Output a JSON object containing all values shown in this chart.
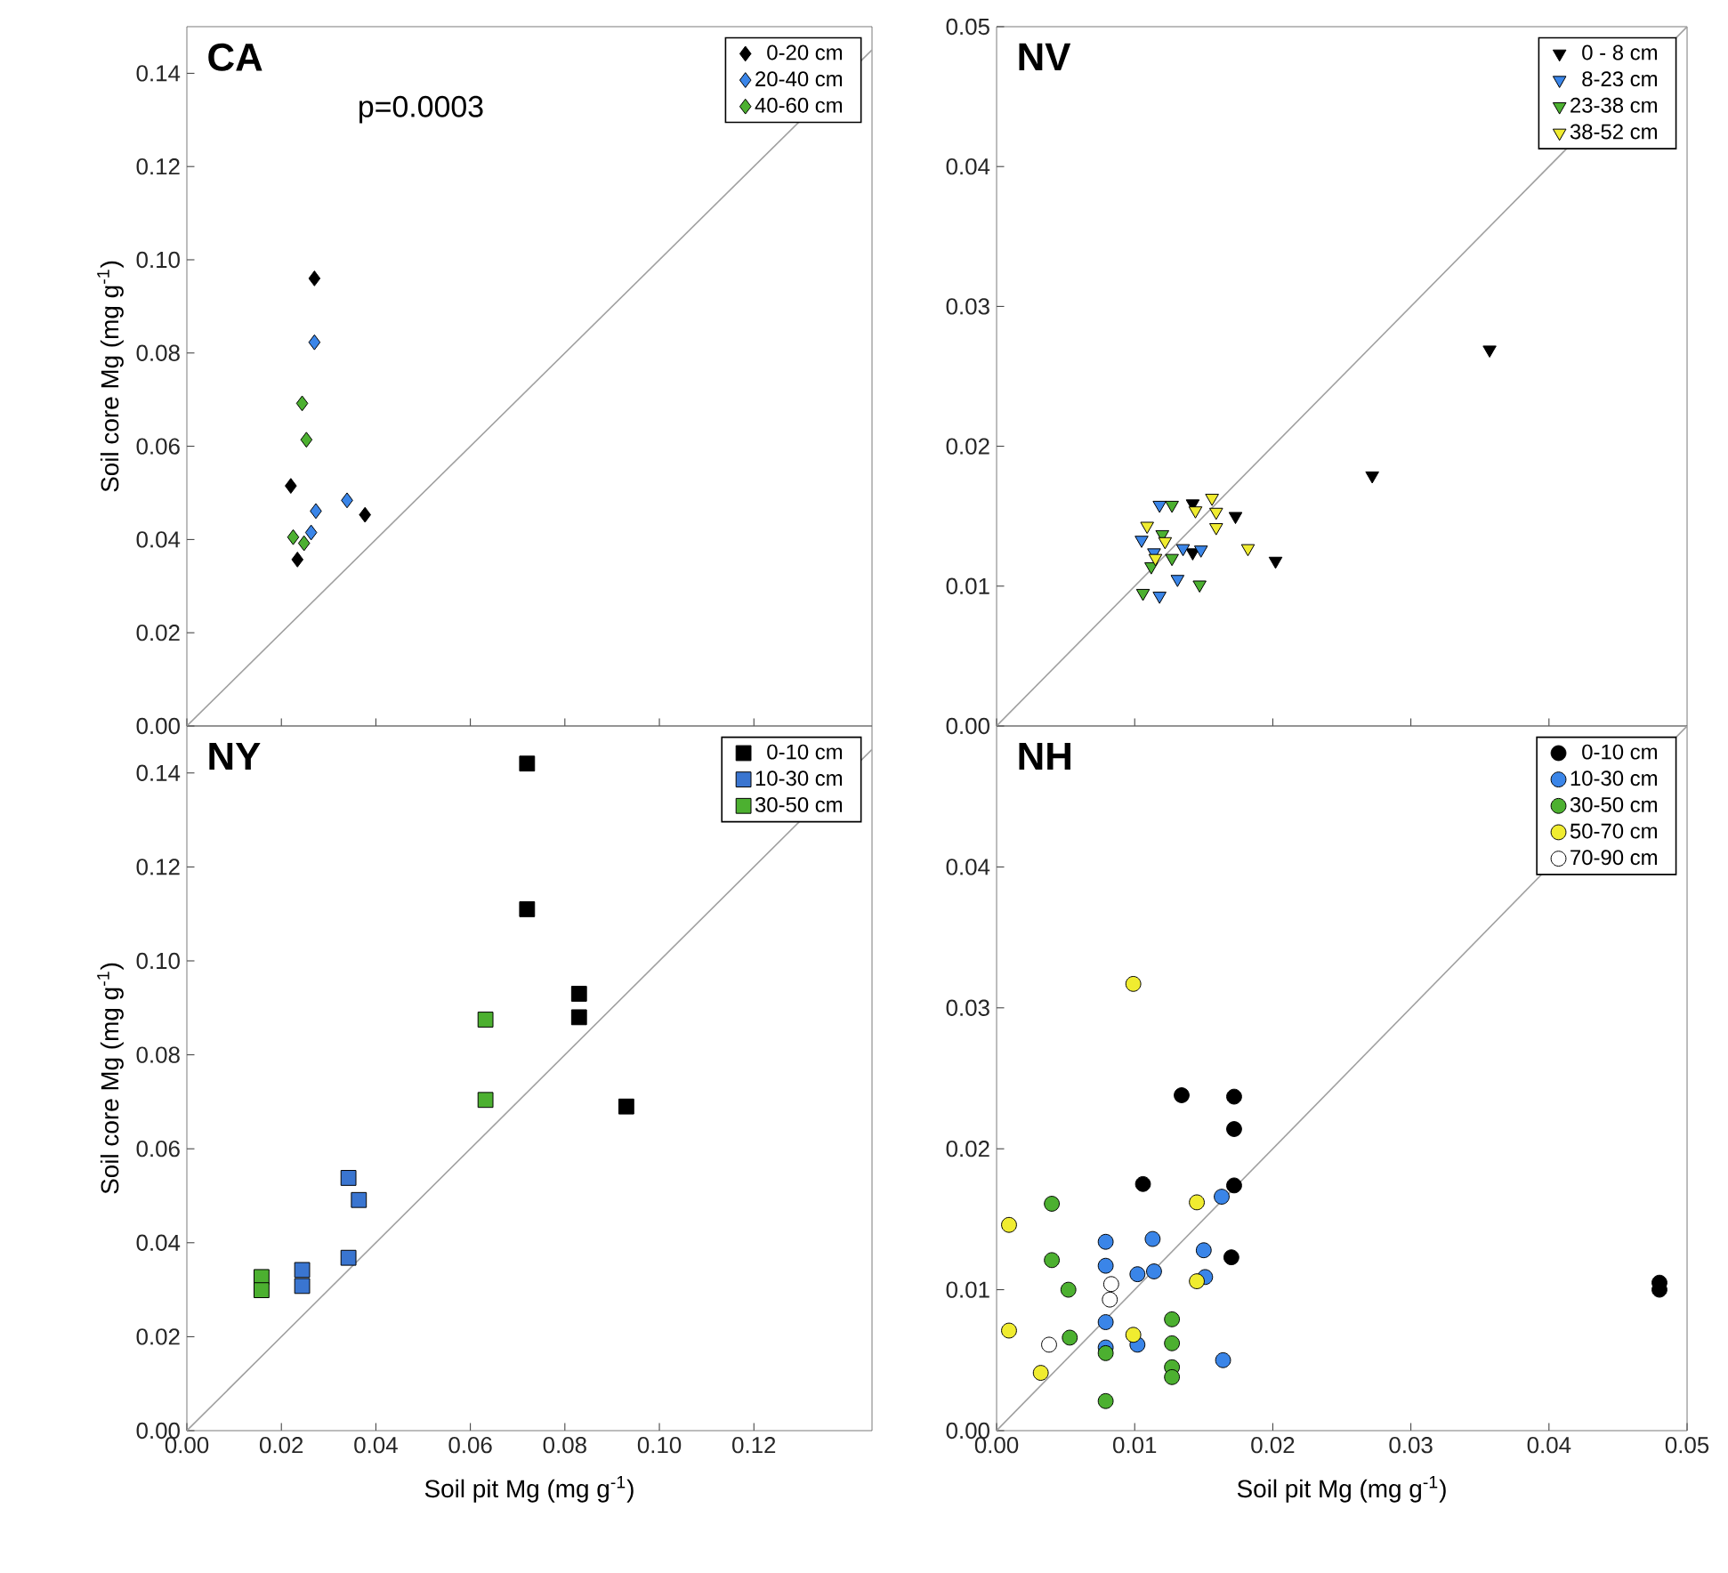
{
  "chart_data": [
    {
      "type": "scatter",
      "title": "CA",
      "ylabel": "Soil core Mg (mg g$^{-1}$)",
      "annotations": [
        "p=0.0003"
      ],
      "marker": "diamond",
      "legend": "top right",
      "grid": false,
      "tick_labels": "y",
      "xlim": [
        0,
        0.145
      ],
      "ylim": [
        0,
        0.15
      ],
      "xticks": [
        {
          "value": 0,
          "label": null
        },
        {
          "value": 0.02,
          "label": null
        },
        {
          "value": 0.04,
          "label": null
        },
        {
          "value": 0.06,
          "label": null
        },
        {
          "value": 0.08,
          "label": null
        },
        {
          "value": 0.1,
          "label": null
        },
        {
          "value": 0.12,
          "label": null
        }
      ],
      "yticks": [
        {
          "value": 0,
          "label": "0.00"
        },
        {
          "value": 0.02,
          "label": "0.02"
        },
        {
          "value": 0.04,
          "label": "0.04"
        },
        {
          "value": 0.06,
          "label": "0.06"
        },
        {
          "value": 0.08,
          "label": "0.08"
        },
        {
          "value": 0.1,
          "label": "0.10"
        },
        {
          "value": 0.12,
          "label": "0.12"
        },
        {
          "value": 0.14,
          "label": "0.14"
        }
      ],
      "series": [
        {
          "type": "line",
          "marker": "none",
          "color": "#a0a0a0",
          "x": [
            0,
            0.145
          ],
          "values": [
            0,
            0.145
          ]
        },
        {
          "name": "0-20 cm",
          "color": "#000000",
          "x": [
            0.027,
            0.022,
            0.0234,
            0.0377
          ],
          "values": [
            0.096,
            0.0515,
            0.0357,
            0.0453
          ]
        },
        {
          "name": "20-40 cm",
          "color": "#3a85e8",
          "x": [
            0.027,
            0.0339,
            0.0273,
            0.0263
          ],
          "values": [
            0.0823,
            0.0484,
            0.0461,
            0.0415
          ]
        },
        {
          "name": "40-60 cm",
          "color": "#4cb030",
          "x": [
            0.0244,
            0.0253,
            0.0225,
            0.0248
          ],
          "values": [
            0.0692,
            0.0614,
            0.0405,
            0.0392
          ]
        }
      ]
    },
    {
      "type": "scatter",
      "title": "NV",
      "marker": "triangle",
      "legend": "top right",
      "grid": false,
      "tick_labels": "y",
      "xlim": [
        0,
        0.05
      ],
      "ylim": [
        0,
        0.05
      ],
      "xticks": [
        {
          "value": 0,
          "label": null
        },
        {
          "value": 0.01,
          "label": null
        },
        {
          "value": 0.02,
          "label": null
        },
        {
          "value": 0.03,
          "label": null
        },
        {
          "value": 0.04,
          "label": null
        }
      ],
      "yticks": [
        {
          "value": 0,
          "label": "0.00"
        },
        {
          "value": 0.01,
          "label": "0.01"
        },
        {
          "value": 0.02,
          "label": "0.02"
        },
        {
          "value": 0.03,
          "label": "0.03"
        },
        {
          "value": 0.04,
          "label": "0.04"
        },
        {
          "value": 0.05,
          "label": "0.05"
        }
      ],
      "series": [
        {
          "type": "line",
          "marker": "none",
          "color": "#a0a0a0",
          "x": [
            0,
            0.05
          ],
          "values": [
            0,
            0.05
          ]
        },
        {
          "name": "0 - 8 cm",
          "color": "#000000",
          "x": [
            0.0357,
            0.0272,
            0.0202,
            0.0173,
            0.0142,
            0.0142
          ],
          "values": [
            0.0269,
            0.0179,
            0.0118,
            0.015,
            0.0159,
            0.0124
          ]
        },
        {
          "name": "8-23 cm",
          "color": "#3a85e8",
          "x": [
            0.0118,
            0.0105,
            0.0118,
            0.0131,
            0.0148,
            0.0135,
            0.0114
          ],
          "values": [
            0.0158,
            0.0133,
            0.0093,
            0.0105,
            0.0126,
            0.0127,
            0.0124
          ]
        },
        {
          "name": "23-38 cm",
          "color": "#4cb030",
          "x": [
            0.0127,
            0.0106,
            0.0147,
            0.0112,
            0.0127,
            0.012
          ],
          "values": [
            0.0158,
            0.0095,
            0.0101,
            0.0114,
            0.012,
            0.0137
          ]
        },
        {
          "name": "38-52 cm",
          "color": "#f0ec30",
          "x": [
            0.0156,
            0.0144,
            0.0159,
            0.0159,
            0.0182,
            0.0109,
            0.0122,
            0.0115
          ],
          "values": [
            0.0163,
            0.0154,
            0.0153,
            0.0142,
            0.0127,
            0.0143,
            0.0132,
            0.012
          ]
        }
      ]
    },
    {
      "type": "scatter",
      "title": "NY",
      "xlabel": "Soil pit Mg (mg g$^{-1}$)",
      "ylabel": "Soil core Mg (mg g$^{-1}$)",
      "marker": "square",
      "legend": "top right",
      "grid": false,
      "xlim": [
        0,
        0.145
      ],
      "ylim": [
        0,
        0.15
      ],
      "xticks": [
        {
          "value": 0,
          "label": "0.00"
        },
        {
          "value": 0.02,
          "label": "0.02"
        },
        {
          "value": 0.04,
          "label": "0.04"
        },
        {
          "value": 0.06,
          "label": "0.06"
        },
        {
          "value": 0.08,
          "label": "0.08"
        },
        {
          "value": 0.1,
          "label": "0.10"
        },
        {
          "value": 0.12,
          "label": "0.12"
        }
      ],
      "yticks": [
        {
          "value": 0,
          "label": "0.00"
        },
        {
          "value": 0.02,
          "label": "0.02"
        },
        {
          "value": 0.04,
          "label": "0.04"
        },
        {
          "value": 0.06,
          "label": "0.06"
        },
        {
          "value": 0.08,
          "label": "0.08"
        },
        {
          "value": 0.1,
          "label": "0.10"
        },
        {
          "value": 0.12,
          "label": "0.12"
        },
        {
          "value": 0.14,
          "label": "0.14"
        }
      ],
      "series": [
        {
          "type": "line",
          "marker": "none",
          "color": "#a0a0a0",
          "x": [
            0,
            0.145
          ],
          "values": [
            0,
            0.145
          ]
        },
        {
          "name": "0-10 cm",
          "color": "#000000",
          "x": [
            0.072,
            0.072,
            0.083,
            0.083,
            0.093
          ],
          "values": [
            0.142,
            0.111,
            0.093,
            0.088,
            0.069
          ]
        },
        {
          "name": "10-30 cm",
          "color": "#3a75d0",
          "x": [
            0.0342,
            0.0364,
            0.0342,
            0.0244,
            0.0244
          ],
          "values": [
            0.0538,
            0.0491,
            0.0368,
            0.0342,
            0.0308
          ]
        },
        {
          "name": "30-50 cm",
          "color": "#4cb030",
          "x": [
            0.0632,
            0.0632,
            0.0158,
            0.0158
          ],
          "values": [
            0.0875,
            0.0704,
            0.0327,
            0.0299
          ]
        }
      ]
    },
    {
      "type": "scatter",
      "title": "NH",
      "xlabel": "Soil pit Mg (mg g$^{-1}$)",
      "marker": "circle",
      "legend": "top right",
      "grid": false,
      "xlim": [
        0,
        0.05
      ],
      "ylim": [
        0,
        0.05
      ],
      "xticks": [
        {
          "value": 0,
          "label": "0.00"
        },
        {
          "value": 0.01,
          "label": "0.01"
        },
        {
          "value": 0.02,
          "label": "0.02"
        },
        {
          "value": 0.03,
          "label": "0.03"
        },
        {
          "value": 0.04,
          "label": "0.04"
        },
        {
          "value": 0.05,
          "label": "0.05"
        }
      ],
      "yticks": [
        {
          "value": 0,
          "label": "0.00"
        },
        {
          "value": 0.01,
          "label": "0.01"
        },
        {
          "value": 0.02,
          "label": "0.02"
        },
        {
          "value": 0.03,
          "label": "0.03"
        },
        {
          "value": 0.04,
          "label": "0.04"
        }
      ],
      "series": [
        {
          "type": "line",
          "marker": "none",
          "color": "#a0a0a0",
          "x": [
            0,
            0.05
          ],
          "values": [
            0,
            0.05
          ]
        },
        {
          "name": "0-10 cm",
          "color": "#000000",
          "x": [
            0.0134,
            0.0172,
            0.0172,
            0.0172,
            0.0106,
            0.017,
            0.048,
            0.048
          ],
          "values": [
            0.0238,
            0.0237,
            0.0214,
            0.0174,
            0.0175,
            0.0123,
            0.0105,
            0.01
          ]
        },
        {
          "name": "10-30 cm",
          "color": "#3a85e8",
          "x": [
            0.0163,
            0.0079,
            0.0113,
            0.015,
            0.0079,
            0.0102,
            0.0114,
            0.0151,
            0.0079,
            0.0102,
            0.0079,
            0.0164
          ],
          "values": [
            0.0166,
            0.0134,
            0.0136,
            0.0128,
            0.0117,
            0.0111,
            0.0113,
            0.0109,
            0.0077,
            0.0061,
            0.0059,
            0.005
          ]
        },
        {
          "name": "30-50 cm",
          "color": "#4cb030",
          "x": [
            0.004,
            0.004,
            0.0052,
            0.0053,
            0.0079,
            0.0127,
            0.0127,
            0.0127,
            0.0127,
            0.0079
          ],
          "values": [
            0.0161,
            0.0121,
            0.01,
            0.0066,
            0.0055,
            0.0079,
            0.0062,
            0.0045,
            0.0038,
            0.0021
          ]
        },
        {
          "name": "50-70 cm",
          "color": "#f0ec30",
          "x": [
            0.0099,
            0.0145,
            0.0009,
            0.0145,
            0.0009,
            0.0099,
            0.0032
          ],
          "values": [
            0.0317,
            0.0162,
            0.0146,
            0.0106,
            0.0071,
            0.0068,
            0.0041
          ]
        },
        {
          "name": "70-90 cm",
          "color": "#ffffff",
          "x": [
            0.0083,
            0.0082,
            0.0038
          ],
          "values": [
            0.0104,
            0.0093,
            0.0061
          ]
        }
      ]
    }
  ]
}
